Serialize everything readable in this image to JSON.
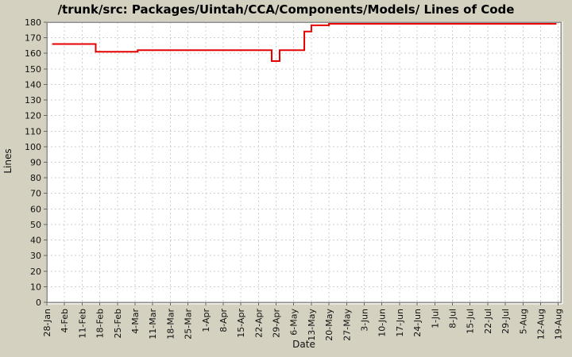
{
  "chart_data": {
    "type": "step-line",
    "title": "/trunk/src: Packages/Uintah/CCA/Components/Models/ Lines of Code",
    "xlabel": "Date",
    "ylabel": "Lines",
    "ylim": [
      0,
      180
    ],
    "ytick_step": 10,
    "y_tick_labels": [
      0,
      10,
      20,
      30,
      40,
      50,
      60,
      70,
      80,
      90,
      100,
      110,
      120,
      130,
      140,
      150,
      160,
      170,
      180
    ],
    "x_tick_labels": [
      "28-Jan",
      "4-Feb",
      "11-Feb",
      "18-Feb",
      "25-Feb",
      "4-Mar",
      "11-Mar",
      "18-Mar",
      "25-Mar",
      "1-Apr",
      "8-Apr",
      "15-Apr",
      "22-Apr",
      "29-Apr",
      "6-May",
      "13-May",
      "20-May",
      "27-May",
      "3-Jun",
      "10-Jun",
      "17-Jun",
      "24-Jun",
      "1-Jul",
      "8-Jul",
      "15-Jul",
      "22-Jul",
      "29-Jul",
      "5-Aug",
      "12-Aug",
      "19-Aug"
    ],
    "x_range_weeks": [
      0,
      29.15
    ],
    "grid": true,
    "legend": "none",
    "series": [
      {
        "name": "Lines of Code",
        "steps": [
          {
            "week": 0.3,
            "date": "30-Jan",
            "value": 166
          },
          {
            "week": 2.77,
            "date": "17-Feb",
            "value": 161
          },
          {
            "week": 5.15,
            "date": "5-Mar",
            "value": 162
          },
          {
            "week": 12.75,
            "date": "27-Apr",
            "value": 155
          },
          {
            "week": 13.2,
            "date": "30-Apr",
            "value": 162
          },
          {
            "week": 14.6,
            "date": "9-May",
            "value": 174
          },
          {
            "week": 15.0,
            "date": "13-May",
            "value": 178
          },
          {
            "week": 16.0,
            "date": "20-May",
            "value": 179
          },
          {
            "week": 28.9,
            "date": "19-Aug",
            "value": 179
          }
        ]
      }
    ]
  },
  "colors": {
    "background": "#d4d1c0",
    "plot_background": "#ffffff",
    "plot_border": "#8f8f8f",
    "bevel_highlight": "#ffffff",
    "grid": "#cfcfcf",
    "tick": "#666666",
    "line": "#e60000",
    "text": "#111111"
  }
}
